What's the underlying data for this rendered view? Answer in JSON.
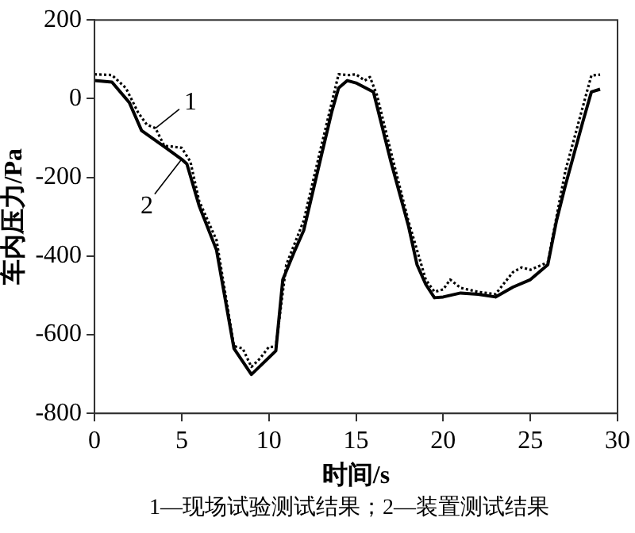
{
  "chart_data": {
    "type": "line",
    "xlabel": "时间/s",
    "ylabel": "车内压力/Pa",
    "xlim": [
      0,
      30
    ],
    "xticks": [
      0,
      5,
      10,
      15,
      20,
      25,
      30
    ],
    "ylim": [
      -800,
      200
    ],
    "yticks": [
      -800,
      -600,
      -400,
      -200,
      0,
      200
    ],
    "grid": false,
    "legend": false,
    "marker": "none",
    "series": [
      {
        "color": "#000000",
        "line_style": "dotted",
        "x": [
          0,
          1,
          1.8,
          2.5,
          3,
          3.5,
          4,
          4.5,
          5,
          5.5,
          6,
          7,
          8,
          8.5,
          9,
          9.5,
          10,
          10.4,
          11,
          12,
          13,
          14,
          14.6,
          15,
          15.5,
          15.8,
          16.2,
          17,
          18,
          19,
          19.5,
          20,
          20.4,
          21,
          22,
          23,
          24,
          24.5,
          25,
          26,
          27,
          28,
          28.5,
          29
        ],
        "values": [
          62,
          60,
          27,
          -35,
          -66,
          -75,
          -120,
          -122,
          -125,
          -160,
          -260,
          -360,
          -629,
          -635,
          -682,
          -660,
          -631,
          -631,
          -422,
          -310,
          -122,
          62,
          60,
          62,
          46,
          55,
          9,
          -135,
          -310,
          -460,
          -491,
          -485,
          -460,
          -481,
          -491,
          -497,
          -441,
          -429,
          -435,
          -416,
          -185,
          -22,
          59,
          61
        ]
      },
      {
        "color": "#000000",
        "line_style": "solid",
        "x": [
          0,
          1,
          2,
          2.7,
          4,
          5,
          5.3,
          6,
          7,
          7.5,
          8,
          9,
          10.4,
          10.8,
          11.5,
          12,
          13,
          13.6,
          14,
          14.5,
          15,
          16,
          17,
          18,
          18.5,
          19,
          19.5,
          20,
          21,
          22,
          23,
          24,
          25,
          26,
          26.5,
          27,
          28,
          28.5,
          29
        ],
        "values": [
          46,
          42,
          -10,
          -81,
          -122,
          -154,
          -166,
          -272,
          -385,
          -510,
          -635,
          -701,
          -641,
          -460,
          -385,
          -335,
          -147,
          -35,
          27,
          46,
          40,
          17,
          -160,
          -322,
          -422,
          -472,
          -506,
          -504,
          -494,
          -497,
          -504,
          -479,
          -460,
          -422,
          -310,
          -222,
          -60,
          17,
          24
        ]
      }
    ],
    "annotations": [
      {
        "text": "1",
        "x": 3.5,
        "y": -75
      },
      {
        "text": "2",
        "x": 5,
        "y": -154
      },
      "1—现场试验测试结果；2—装置测试结果"
    ]
  }
}
